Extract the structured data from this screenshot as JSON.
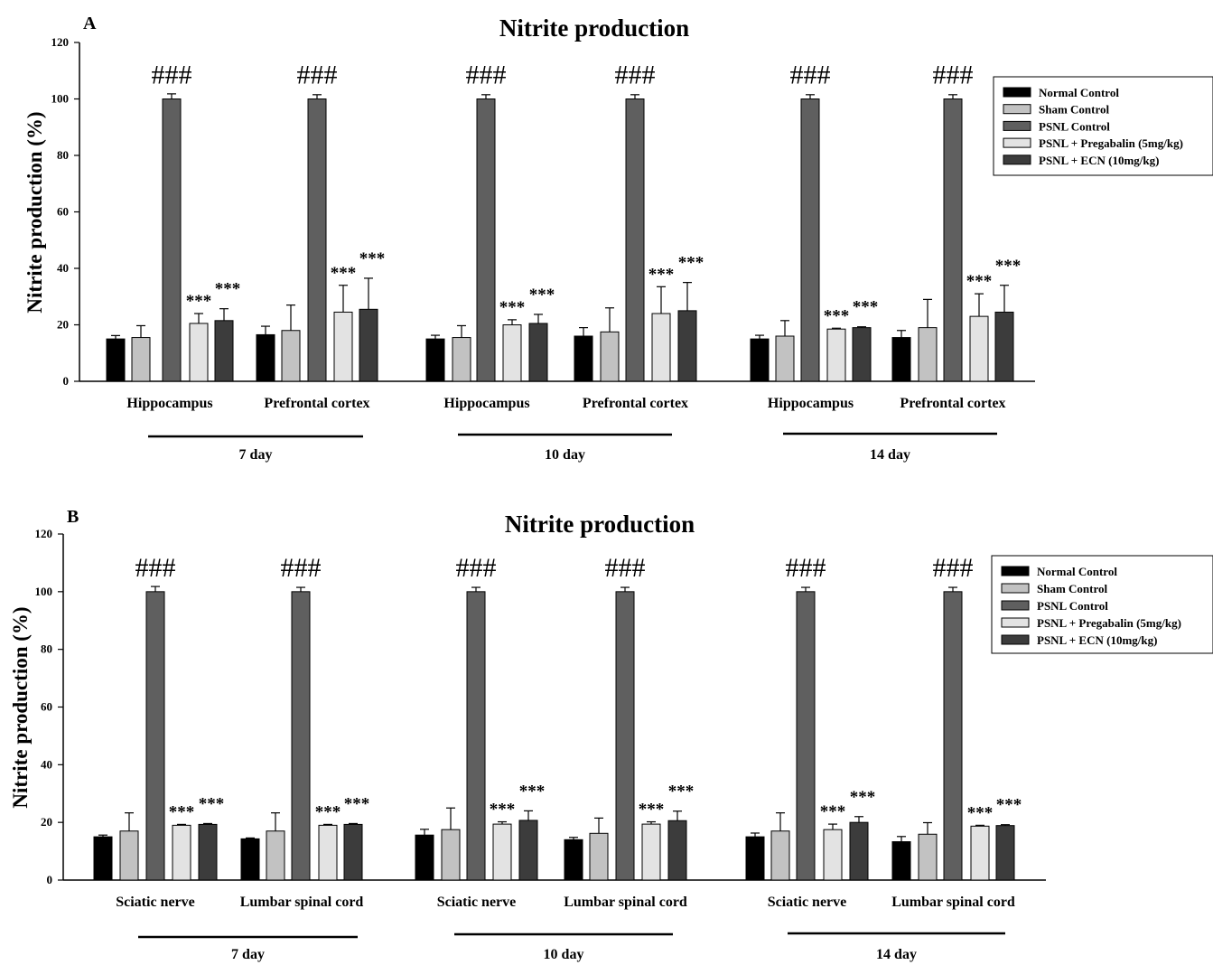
{
  "chart_data": [
    {
      "type": "bar",
      "panel": "A",
      "title": "Nitrite production",
      "ylabel": "Nitrite production (%)",
      "ylim": [
        0,
        120
      ],
      "yticks": [
        0,
        20,
        40,
        60,
        80,
        100,
        120
      ],
      "legend": {
        "placement": "right",
        "entries": [
          "Normal Control",
          "Sham Control",
          "PSNL Control",
          "PSNL + Pregabalin (5mg/kg)",
          "PSNL + ECN (10mg/kg)"
        ]
      },
      "colors": [
        "#000000",
        "#c2c2c2",
        "#5f5f5f",
        "#e3e3e3",
        "#3c3c3c"
      ],
      "time_groups": [
        {
          "label": "7 day",
          "regions": [
            {
              "label": "Hippocampus",
              "values": [
                15,
                15.5,
                100,
                20.5,
                21.5
              ],
              "errors": [
                1.2,
                4.2,
                1.8,
                3.5,
                4.2
              ],
              "sig": [
                "",
                "",
                "###",
                "***",
                "***"
              ]
            },
            {
              "label": "Prefrontal cortex",
              "values": [
                16.5,
                18,
                100,
                24.5,
                25.5
              ],
              "errors": [
                3,
                9,
                1.5,
                9.5,
                11
              ],
              "sig": [
                "",
                "",
                "###",
                "***",
                "***"
              ]
            }
          ]
        },
        {
          "label": "10 day",
          "regions": [
            {
              "label": "Hippocampus",
              "values": [
                15,
                15.5,
                100,
                20,
                20.5
              ],
              "errors": [
                1.3,
                4.2,
                1.5,
                1.8,
                3.2
              ],
              "sig": [
                "",
                "",
                "###",
                "***",
                "***"
              ]
            },
            {
              "label": "Prefrontal cortex",
              "values": [
                16,
                17.5,
                100,
                24,
                25
              ],
              "errors": [
                3,
                8.5,
                1.5,
                9.5,
                10
              ],
              "sig": [
                "",
                "",
                "###",
                "***",
                "***"
              ]
            }
          ]
        },
        {
          "label": "14 day",
          "regions": [
            {
              "label": "Hippocampus",
              "values": [
                15,
                16,
                100,
                18.5,
                19
              ],
              "errors": [
                1.3,
                5.5,
                1.5,
                0.3,
                0.3
              ],
              "sig": [
                "",
                "",
                "###",
                "***",
                "***"
              ]
            },
            {
              "label": "Prefrontal cortex",
              "values": [
                15.5,
                19,
                100,
                23,
                24.5
              ],
              "errors": [
                2.5,
                10,
                1.5,
                8,
                9.5
              ],
              "sig": [
                "",
                "",
                "###",
                "***",
                "***"
              ]
            }
          ]
        }
      ]
    },
    {
      "type": "bar",
      "panel": "B",
      "title": "Nitrite production",
      "ylabel": "Nitrite production (%)",
      "ylim": [
        0,
        120
      ],
      "yticks": [
        0,
        20,
        40,
        60,
        80,
        100,
        120
      ],
      "legend": {
        "placement": "right",
        "entries": [
          "Normal Control",
          "Sham Control",
          "PSNL Control",
          "PSNL + Pregabalin (5mg/kg)",
          "PSNL + ECN (10mg/kg)"
        ]
      },
      "colors": [
        "#000000",
        "#c2c2c2",
        "#5f5f5f",
        "#e3e3e3",
        "#3c3c3c"
      ],
      "time_groups": [
        {
          "label": "7 day",
          "regions": [
            {
              "label": "Sciatic nerve",
              "values": [
                15,
                17,
                100,
                19,
                19.3
              ],
              "errors": [
                0.6,
                6.3,
                1.8,
                0.3,
                0.3
              ],
              "sig": [
                "",
                "",
                "###",
                "***",
                "***"
              ]
            },
            {
              "label": "Lumbar spinal cord",
              "values": [
                14.3,
                17,
                100,
                19,
                19.3
              ],
              "errors": [
                0.3,
                6.3,
                1.5,
                0.3,
                0.3
              ],
              "sig": [
                "",
                "",
                "###",
                "***",
                "***"
              ]
            }
          ]
        },
        {
          "label": "10 day",
          "regions": [
            {
              "label": "Sciatic nerve",
              "values": [
                15.6,
                17.5,
                100,
                19.4,
                20.7
              ],
              "errors": [
                2,
                7.5,
                1.5,
                0.8,
                3.3
              ],
              "sig": [
                "",
                "",
                "###",
                "***",
                "***"
              ]
            },
            {
              "label": "Lumbar spinal cord",
              "values": [
                14,
                16.2,
                100,
                19.4,
                20.6
              ],
              "errors": [
                0.8,
                5.3,
                1.5,
                0.8,
                3.3
              ],
              "sig": [
                "",
                "",
                "###",
                "***",
                "***"
              ]
            }
          ]
        },
        {
          "label": "14 day",
          "regions": [
            {
              "label": "Sciatic nerve",
              "values": [
                15,
                17,
                100,
                17.5,
                20
              ],
              "errors": [
                1.3,
                6.3,
                1.5,
                1.9,
                2
              ],
              "sig": [
                "",
                "",
                "###",
                "***",
                "***"
              ]
            },
            {
              "label": "Lumbar spinal cord",
              "values": [
                13.3,
                15.9,
                100,
                18.7,
                18.9
              ],
              "errors": [
                1.8,
                4,
                1.5,
                0.3,
                0.3
              ],
              "sig": [
                "",
                "",
                "###",
                "***",
                "***"
              ]
            }
          ]
        }
      ]
    }
  ]
}
